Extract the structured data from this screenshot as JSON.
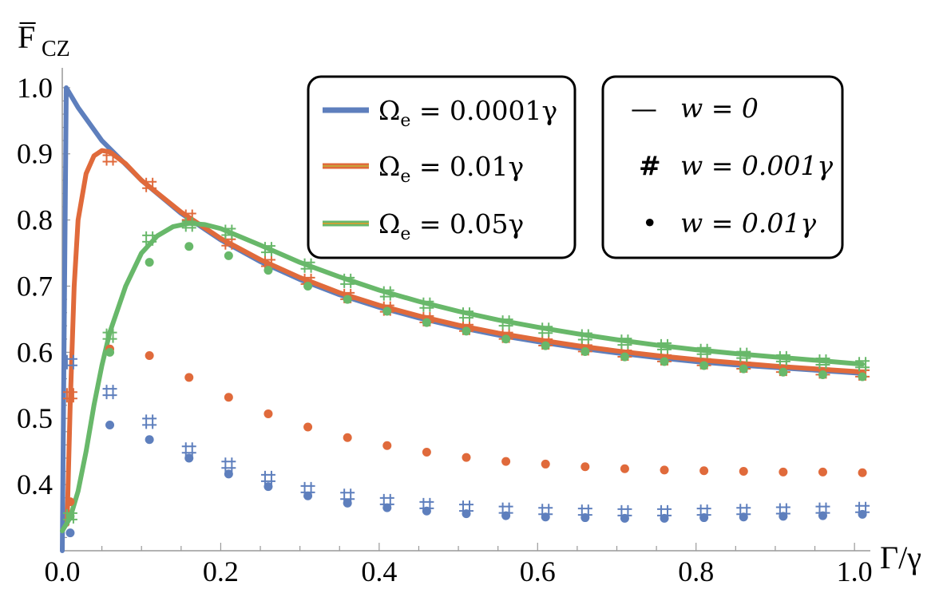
{
  "chart_data": {
    "type": "line",
    "title": "",
    "ylabel": "F̅",
    "ylabel_sub": "CZ",
    "xlabel": "Γ/γ",
    "xlim": [
      0,
      1.02
    ],
    "ylim": [
      0.3,
      1.03
    ],
    "xticks": [
      "0.0",
      "0.2",
      "0.4",
      "0.6",
      "0.8",
      "1.0"
    ],
    "yticks": [
      "0.4",
      "0.5",
      "0.6",
      "0.7",
      "0.8",
      "0.9",
      "1.0"
    ],
    "colors": {
      "blue": "#5e7fbd",
      "orange": "#e06a3b",
      "green": "#68b86a",
      "legend_mid": "#c8a23a"
    },
    "legend_series": [
      {
        "prefix": "Ω",
        "sub": "e",
        "rest": " =  0.0001γ",
        "color": "blue"
      },
      {
        "prefix": "Ω",
        "sub": "e",
        "rest": " =  0.01γ",
        "color": "orange"
      },
      {
        "prefix": "Ω",
        "sub": "e",
        "rest": " =  0.05γ",
        "color": "green"
      }
    ],
    "legend_markers": [
      {
        "symbol": "—",
        "label": "w = 0"
      },
      {
        "symbol": "#",
        "label": "w = 0.001γ"
      },
      {
        "symbol": "•",
        "label": "w = 0.01γ"
      }
    ],
    "series": [
      {
        "name": "Ωe = 0.0001γ, w = 0",
        "color": "blue",
        "style": "line",
        "x": [
          0,
          0.005,
          0.02,
          0.05,
          0.1,
          0.15,
          0.2,
          0.25,
          0.3,
          0.35,
          0.4,
          0.45,
          0.5,
          0.55,
          0.6,
          0.65,
          0.7,
          0.75,
          0.8,
          0.85,
          0.9,
          0.95,
          1.0,
          1.01
        ],
        "y": [
          0.3,
          1.0,
          0.97,
          0.92,
          0.86,
          0.81,
          0.77,
          0.737,
          0.71,
          0.687,
          0.668,
          0.652,
          0.638,
          0.626,
          0.616,
          0.607,
          0.599,
          0.592,
          0.586,
          0.581,
          0.577,
          0.573,
          0.569,
          0.568
        ]
      },
      {
        "name": "Ωe = 0.01γ, w = 0",
        "color": "orange",
        "style": "line",
        "x": [
          0.006,
          0.01,
          0.015,
          0.02,
          0.03,
          0.04,
          0.05,
          0.06,
          0.08,
          0.1,
          0.15,
          0.2,
          0.25,
          0.3,
          0.35,
          0.4,
          0.45,
          0.5,
          0.55,
          0.6,
          0.65,
          0.7,
          0.75,
          0.8,
          0.85,
          0.9,
          0.95,
          1.0,
          1.01
        ],
        "y": [
          0.34,
          0.52,
          0.7,
          0.8,
          0.87,
          0.897,
          0.905,
          0.903,
          0.885,
          0.86,
          0.812,
          0.772,
          0.74,
          0.713,
          0.69,
          0.671,
          0.655,
          0.641,
          0.629,
          0.619,
          0.61,
          0.602,
          0.595,
          0.589,
          0.584,
          0.579,
          0.575,
          0.571,
          0.57
        ]
      },
      {
        "name": "Ωe = 0.05γ, w = 0",
        "color": "green",
        "style": "line",
        "x": [
          0,
          0.01,
          0.02,
          0.03,
          0.04,
          0.05,
          0.06,
          0.08,
          0.1,
          0.12,
          0.14,
          0.16,
          0.18,
          0.2,
          0.25,
          0.3,
          0.35,
          0.4,
          0.45,
          0.5,
          0.55,
          0.6,
          0.65,
          0.7,
          0.75,
          0.8,
          0.85,
          0.9,
          0.95,
          1.0,
          1.01
        ],
        "y": [
          0.33,
          0.35,
          0.39,
          0.45,
          0.52,
          0.58,
          0.63,
          0.7,
          0.75,
          0.776,
          0.79,
          0.795,
          0.793,
          0.787,
          0.762,
          0.736,
          0.714,
          0.694,
          0.677,
          0.662,
          0.649,
          0.638,
          0.628,
          0.619,
          0.611,
          0.604,
          0.598,
          0.593,
          0.588,
          0.583,
          0.582
        ]
      },
      {
        "name": "Ωe = 0.0001γ, w = 0.001γ",
        "color": "blue",
        "style": "hash",
        "x": [
          0.01,
          0.06,
          0.11,
          0.16,
          0.21,
          0.26,
          0.31,
          0.36,
          0.41,
          0.46,
          0.51,
          0.56,
          0.61,
          0.66,
          0.71,
          0.76,
          0.81,
          0.86,
          0.91,
          0.96,
          1.01
        ],
        "y": [
          0.585,
          0.54,
          0.495,
          0.453,
          0.43,
          0.41,
          0.393,
          0.383,
          0.375,
          0.369,
          0.365,
          0.362,
          0.36,
          0.359,
          0.358,
          0.358,
          0.359,
          0.36,
          0.361,
          0.362,
          0.363
        ]
      },
      {
        "name": "Ωe = 0.0001γ, w = 0.01γ",
        "color": "blue",
        "style": "dot",
        "x": [
          0.01,
          0.06,
          0.11,
          0.16,
          0.21,
          0.26,
          0.31,
          0.36,
          0.41,
          0.46,
          0.51,
          0.56,
          0.61,
          0.66,
          0.71,
          0.76,
          0.81,
          0.86,
          0.91,
          0.96,
          1.01
        ],
        "y": [
          0.327,
          0.49,
          0.468,
          0.44,
          0.416,
          0.397,
          0.383,
          0.372,
          0.365,
          0.36,
          0.356,
          0.353,
          0.351,
          0.35,
          0.349,
          0.349,
          0.35,
          0.351,
          0.352,
          0.353,
          0.355
        ]
      },
      {
        "name": "Ωe = 0.01γ, w = 0.001γ",
        "color": "orange",
        "style": "hash",
        "x": [
          0.01,
          0.06,
          0.11,
          0.16,
          0.21,
          0.26,
          0.31,
          0.36,
          0.41,
          0.46,
          0.51,
          0.56,
          0.61,
          0.66,
          0.71,
          0.76,
          0.81,
          0.86,
          0.91,
          0.96,
          1.01
        ],
        "y": [
          0.535,
          0.893,
          0.853,
          0.805,
          0.766,
          0.735,
          0.708,
          0.685,
          0.666,
          0.65,
          0.637,
          0.625,
          0.615,
          0.606,
          0.598,
          0.591,
          0.585,
          0.58,
          0.575,
          0.571,
          0.568
        ]
      },
      {
        "name": "Ωe = 0.01γ, w = 0.01γ",
        "color": "orange",
        "style": "dot",
        "x": [
          0.01,
          0.06,
          0.11,
          0.16,
          0.21,
          0.26,
          0.31,
          0.36,
          0.41,
          0.46,
          0.51,
          0.56,
          0.61,
          0.66,
          0.71,
          0.76,
          0.81,
          0.86,
          0.91,
          0.96,
          1.01
        ],
        "y": [
          0.374,
          0.605,
          0.595,
          0.562,
          0.532,
          0.507,
          0.487,
          0.471,
          0.459,
          0.449,
          0.441,
          0.435,
          0.431,
          0.427,
          0.424,
          0.422,
          0.421,
          0.42,
          0.419,
          0.419,
          0.418
        ]
      },
      {
        "name": "Ωe = 0.05γ, w = 0.001γ",
        "color": "green",
        "style": "hash",
        "x": [
          0.01,
          0.06,
          0.11,
          0.16,
          0.21,
          0.26,
          0.31,
          0.36,
          0.41,
          0.46,
          0.51,
          0.56,
          0.61,
          0.66,
          0.71,
          0.76,
          0.81,
          0.86,
          0.91,
          0.96,
          1.01
        ],
        "y": [
          0.352,
          0.625,
          0.772,
          0.793,
          0.782,
          0.756,
          0.731,
          0.708,
          0.689,
          0.672,
          0.657,
          0.645,
          0.634,
          0.624,
          0.616,
          0.609,
          0.602,
          0.596,
          0.591,
          0.586,
          0.582
        ]
      },
      {
        "name": "Ωe = 0.05γ, w = 0.01γ",
        "color": "green",
        "style": "dot",
        "x": [
          0.01,
          0.06,
          0.11,
          0.16,
          0.21,
          0.26,
          0.31,
          0.36,
          0.41,
          0.46,
          0.51,
          0.56,
          0.61,
          0.66,
          0.71,
          0.76,
          0.81,
          0.86,
          0.91,
          0.96,
          1.01
        ],
        "y": [
          0.352,
          0.6,
          0.736,
          0.76,
          0.746,
          0.724,
          0.7,
          0.68,
          0.662,
          0.645,
          0.632,
          0.62,
          0.61,
          0.601,
          0.593,
          0.586,
          0.58,
          0.575,
          0.57,
          0.566,
          0.563
        ]
      }
    ]
  }
}
